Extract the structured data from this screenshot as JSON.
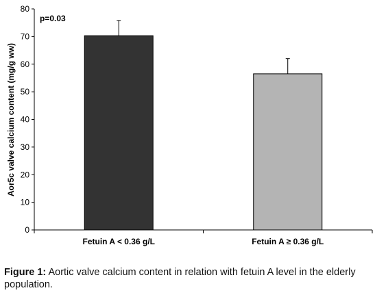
{
  "chart_data": {
    "type": "bar",
    "categories": [
      "Fetuin A < 0.36 g/L",
      "Fetuin A ≥ 0.36 g/L"
    ],
    "values": [
      70.3,
      56.5
    ],
    "error_upper": [
      5.5,
      5.5
    ],
    "colors": [
      "#333333",
      "#b4b4b4"
    ],
    "ylabel": "Aor5c valve calcium content (mg/g ww)",
    "ylim": [
      0,
      80
    ],
    "yticks": [
      "0",
      "10",
      "20",
      "30",
      "40",
      "50",
      "60",
      "70",
      "80"
    ],
    "grid": false,
    "annotation": "p=0.03"
  },
  "caption": {
    "label": "Figure 1:",
    "text": " Aortic valve calcium content in relation with fetuin A level in the elderly population."
  }
}
